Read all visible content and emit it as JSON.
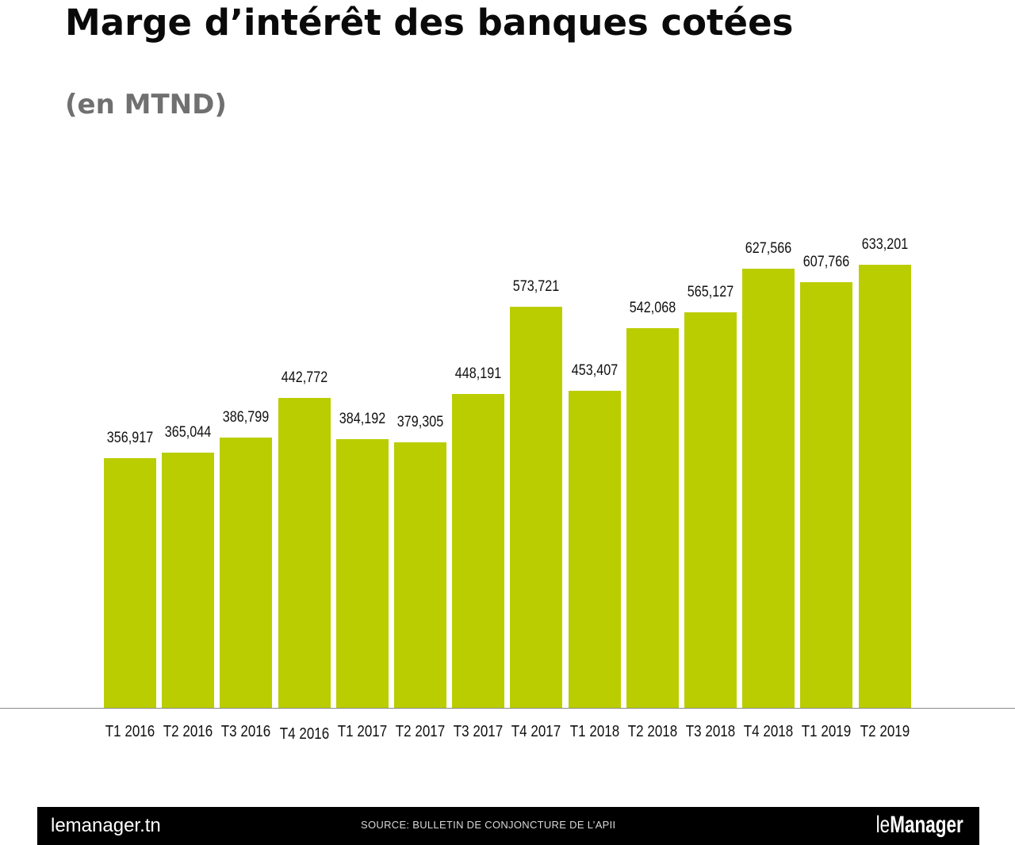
{
  "title": "Marge d’intérêt des banques cotées",
  "subtitle": "(en MTND)",
  "footer": {
    "site": "lemanager.tn",
    "source": "SOURCE: BULLETIN DE CONJONCTURE DE L’APII",
    "logo_le": "le",
    "logo_manager": "Manager"
  },
  "colors": {
    "bar": "#bacd00",
    "axis": "#8a8a8a",
    "footer_bg": "#000000"
  },
  "chart_data": {
    "type": "bar",
    "title": "Marge d’intérêt des banques cotées",
    "subtitle": "(en MTND)",
    "xlabel": "",
    "ylabel": "",
    "categories": [
      "T1 2016",
      "T2 2016",
      "T3 2016",
      "T4 2016",
      "T1 2017",
      "T2 2017",
      "T3 2017",
      "T4 2017",
      "T1 2018",
      "T2 2018",
      "T3 2018",
      "T4 2018",
      "T1 2019",
      "T2 2019"
    ],
    "values": [
      356.917,
      365.044,
      386.799,
      442.772,
      384.192,
      379.305,
      448.191,
      573.721,
      453.407,
      542.068,
      565.127,
      627.566,
      607.766,
      633.201
    ],
    "labels": [
      "356,917",
      "365,044",
      "386,799",
      "442,772",
      "384,192",
      "379,305",
      "448,191",
      "573,721",
      "453,407",
      "542,068",
      "565,127",
      "627,566",
      "607,766",
      "633,201"
    ],
    "ylim": [
      0,
      700
    ],
    "grid": false,
    "legend": null,
    "data_labels": true
  }
}
